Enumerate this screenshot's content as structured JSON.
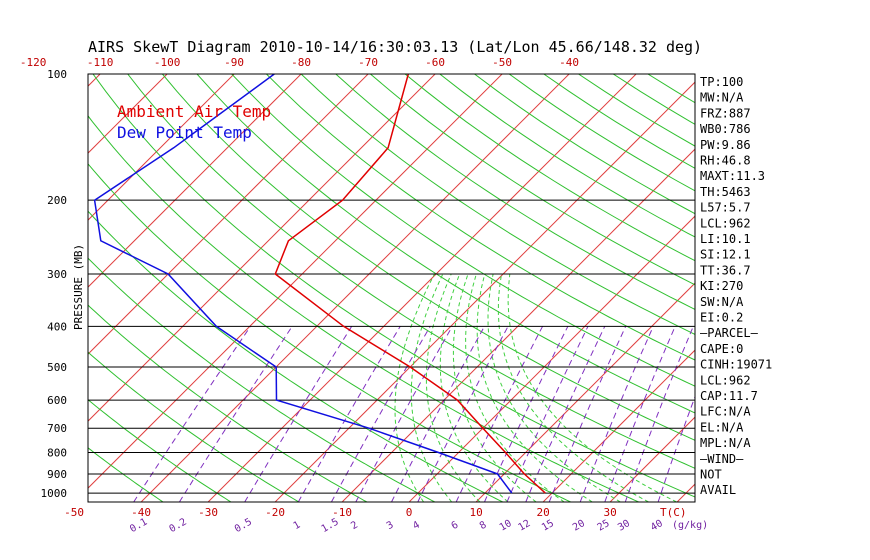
{
  "chart_data": {
    "type": "line",
    "title": "AIRS SkewT Diagram 2010-10-14/16:30:03.13 (Lat/Lon 45.66/148.32 deg)",
    "ylabel": "PRESSURE (MB)",
    "pressure_ticks": [
      100,
      200,
      300,
      400,
      500,
      600,
      700,
      800,
      900,
      1000
    ],
    "top_temp_ticks": [
      -120,
      -110,
      -100,
      -90,
      -80,
      -70,
      -60,
      -50,
      -40
    ],
    "bottom_temp_ticks": [
      -50,
      -40,
      -30,
      -20,
      -10,
      0,
      10,
      20,
      30
    ],
    "bottom_temp_unit": "T(C)",
    "mixing_ratio_ticks": [
      "0.1",
      "0.2",
      "0.5",
      "1",
      "1.5",
      "2",
      "3",
      "4",
      "6",
      "8",
      "10",
      "12",
      "15",
      "20",
      "25",
      "30",
      "40"
    ],
    "mixing_ratio_unit": "(g/kg)",
    "legend": [
      {
        "label": "Ambient Air Temp",
        "color": "#e00000"
      },
      {
        "label": "Dew Point Temp",
        "color": "#1010e0"
      }
    ],
    "series": [
      {
        "name": "Ambient Air Temp",
        "color": "#e00000",
        "points": [
          {
            "p": 100,
            "t": -64
          },
          {
            "p": 150,
            "t": -56
          },
          {
            "p": 200,
            "t": -55
          },
          {
            "p": 250,
            "t": -57
          },
          {
            "p": 300,
            "t": -54
          },
          {
            "p": 400,
            "t": -36
          },
          {
            "p": 500,
            "t": -20
          },
          {
            "p": 600,
            "t": -8
          },
          {
            "p": 700,
            "t": 0
          },
          {
            "p": 800,
            "t": 7
          },
          {
            "p": 900,
            "t": 13
          },
          {
            "p": 1000,
            "t": 19
          }
        ]
      },
      {
        "name": "Dew Point Temp",
        "color": "#1010e0",
        "points": [
          {
            "p": 100,
            "t": -84
          },
          {
            "p": 150,
            "t": -88
          },
          {
            "p": 200,
            "t": -92
          },
          {
            "p": 250,
            "t": -85
          },
          {
            "p": 300,
            "t": -70
          },
          {
            "p": 400,
            "t": -55
          },
          {
            "p": 500,
            "t": -40
          },
          {
            "p": 600,
            "t": -35
          },
          {
            "p": 700,
            "t": -17
          },
          {
            "p": 800,
            "t": -3
          },
          {
            "p": 900,
            "t": 9
          },
          {
            "p": 1000,
            "t": 14
          }
        ]
      }
    ]
  },
  "indices": [
    "TP:100",
    "MW:N/A",
    "FRZ:887",
    "WB0:786",
    "PW:9.86",
    "RH:46.8",
    "MAXT:11.3",
    "TH:5463",
    "L57:5.7",
    "LCL:962",
    "LI:10.1",
    "SI:12.1",
    "TT:36.7",
    "KI:270",
    "SW:N/A",
    "EI:0.2",
    "—PARCEL—",
    "CAPE:0",
    "CINH:19071",
    "LCL:962",
    "CAP:11.7",
    "LFC:N/A",
    "EL:N/A",
    "MPL:N/A",
    "—WIND—",
    "NOT",
    "AVAIL"
  ]
}
